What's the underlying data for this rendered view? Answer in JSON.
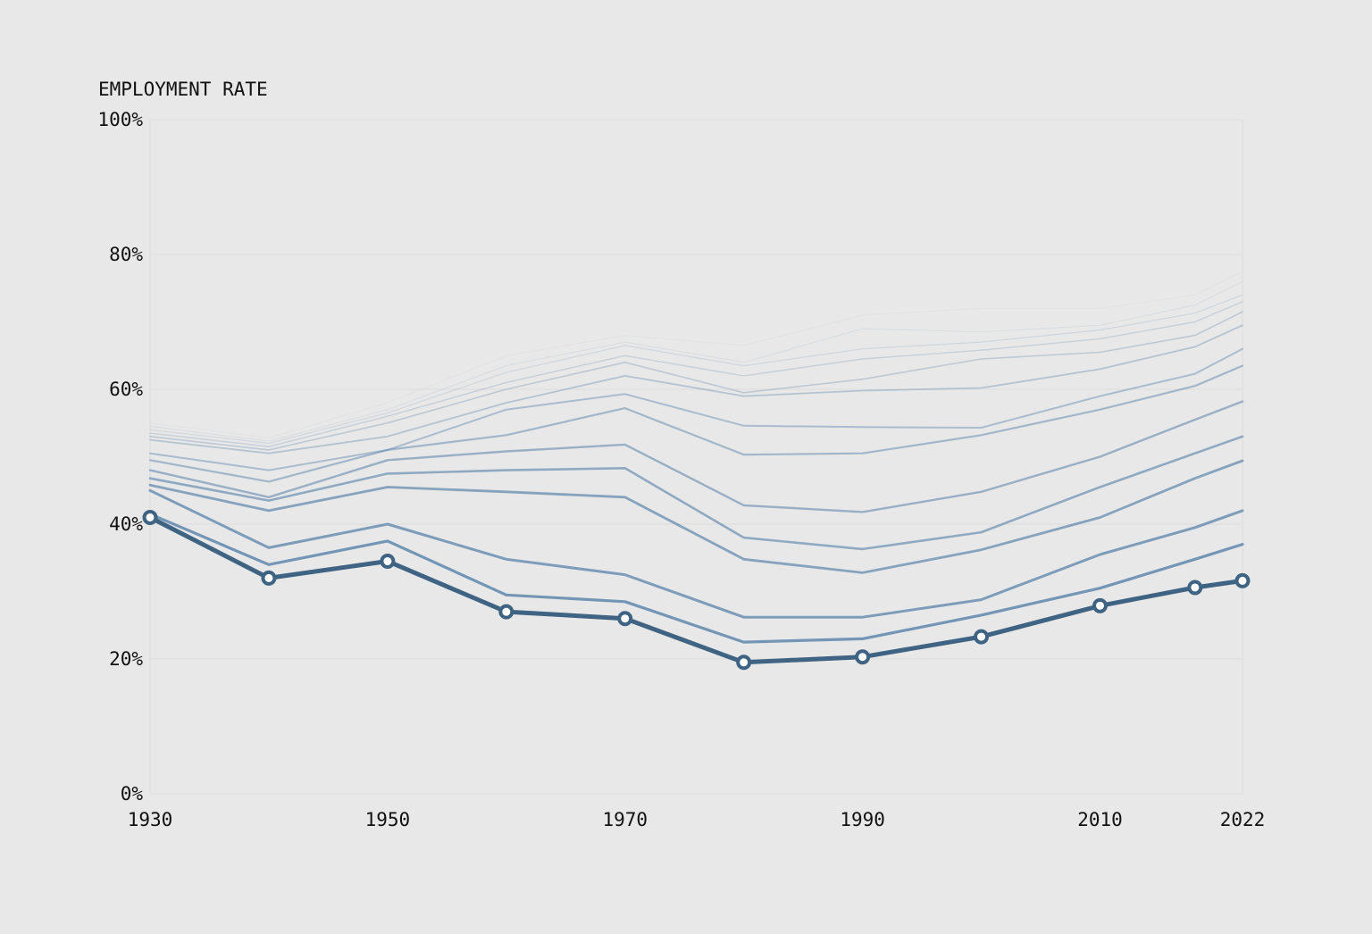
{
  "chart_data": {
    "type": "line",
    "ylabel": "EMPLOYMENT RATE",
    "x": [
      1930,
      1940,
      1950,
      1960,
      1970,
      1980,
      1990,
      2000,
      2010,
      2018,
      2022
    ],
    "x_ticks": [
      "1930",
      "1950",
      "1970",
      "1990",
      "2010",
      "2022"
    ],
    "x_tick_values": [
      1930,
      1950,
      1970,
      1990,
      2010,
      2022
    ],
    "y_ticks": [
      "0%",
      "20%",
      "40%",
      "60%",
      "80%",
      "100%"
    ],
    "y_tick_values": [
      0,
      20,
      40,
      60,
      80,
      100
    ],
    "xlim": [
      1930,
      2022
    ],
    "ylim": [
      0,
      100
    ],
    "grid": true,
    "highlight_color": "#3f6382",
    "series": [
      {
        "values": [
          41.0,
          32.0,
          34.5,
          27.0,
          26.0,
          19.5,
          20.3,
          23.3,
          27.9,
          30.6,
          31.6
        ],
        "highlight": true
      },
      {
        "values": [
          41.5,
          34.0,
          37.5,
          29.5,
          28.5,
          22.5,
          23.0,
          26.5,
          30.5,
          34.8,
          37.0
        ]
      },
      {
        "values": [
          45.0,
          36.5,
          40.0,
          34.8,
          32.5,
          26.2,
          26.2,
          28.8,
          35.5,
          39.5,
          42.0
        ]
      },
      {
        "values": [
          45.8,
          42.0,
          45.5,
          44.8,
          44.0,
          34.8,
          32.8,
          36.2,
          41.0,
          46.8,
          49.4
        ]
      },
      {
        "values": [
          46.8,
          43.5,
          47.5,
          48.0,
          48.3,
          38.0,
          36.3,
          38.8,
          45.5,
          50.5,
          53.0
        ]
      },
      {
        "values": [
          48.0,
          44.0,
          49.5,
          50.8,
          51.8,
          42.8,
          41.8,
          44.8,
          50.0,
          55.5,
          58.2
        ]
      },
      {
        "values": [
          49.5,
          46.3,
          51.0,
          53.2,
          57.2,
          50.3,
          50.5,
          53.2,
          57.0,
          60.5,
          63.5
        ]
      },
      {
        "values": [
          50.5,
          48.0,
          51.0,
          57.0,
          59.3,
          54.6,
          54.4,
          54.3,
          59.0,
          62.3,
          66.0
        ]
      },
      {
        "values": [
          52.5,
          50.5,
          53.0,
          58.0,
          62.0,
          59.0,
          59.8,
          60.2,
          63.0,
          66.3,
          69.5
        ]
      },
      {
        "values": [
          53.0,
          51.0,
          55.0,
          60.0,
          64.0,
          59.5,
          61.5,
          64.5,
          65.5,
          68.0,
          71.5
        ]
      },
      {
        "values": [
          53.5,
          51.5,
          56.0,
          61.0,
          65.0,
          62.0,
          64.5,
          65.8,
          67.5,
          70.0,
          73.0
        ]
      },
      {
        "values": [
          54.0,
          52.0,
          56.5,
          62.5,
          66.5,
          63.5,
          66.0,
          67.0,
          68.8,
          71.3,
          74.0
        ]
      },
      {
        "values": [
          54.5,
          52.3,
          57.0,
          63.5,
          67.0,
          64.0,
          69.0,
          68.5,
          69.5,
          72.5,
          76.0
        ]
      },
      {
        "values": [
          55.0,
          52.8,
          58.0,
          65.0,
          68.0,
          66.5,
          71.0,
          72.0,
          72.0,
          74.0,
          77.5
        ]
      }
    ]
  }
}
